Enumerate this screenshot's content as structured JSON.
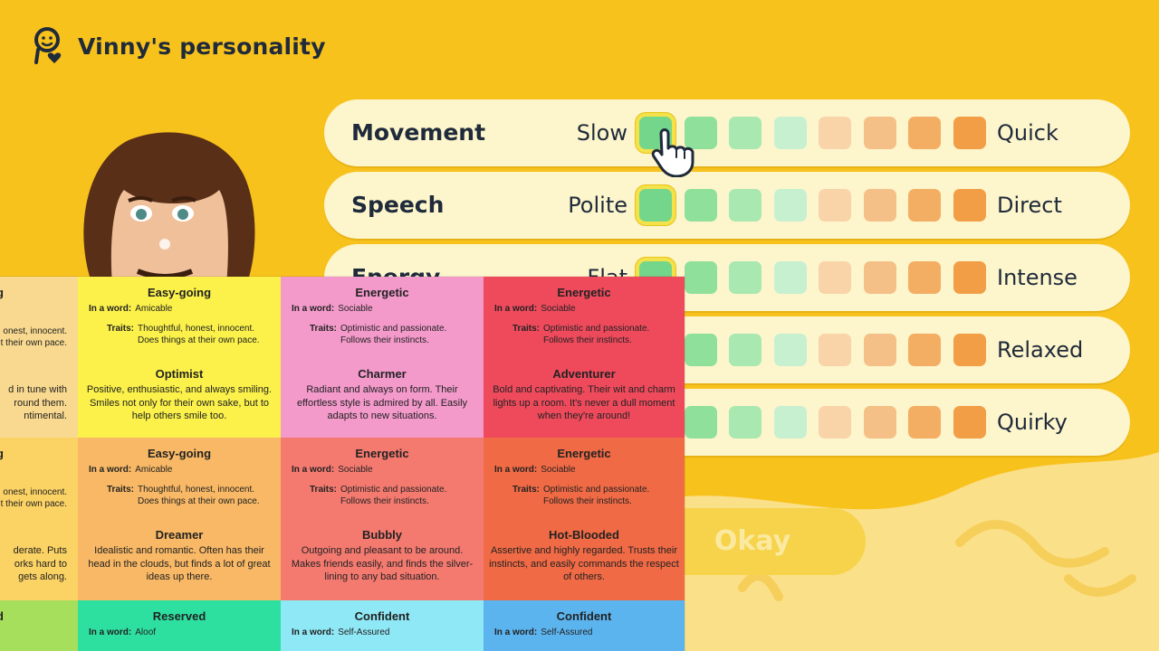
{
  "header": {
    "title": "Vinny's personality",
    "icon": "person-heart-icon"
  },
  "sliders": [
    {
      "name": "Movement",
      "left": "Slow",
      "right": "Quick",
      "selected": 0
    },
    {
      "name": "Speech",
      "left": "Polite",
      "right": "Direct",
      "selected": 0
    },
    {
      "name": "Energy",
      "left": "Flat",
      "right": "Intense",
      "selected": 0
    },
    {
      "name": "",
      "left": "",
      "right": "Relaxed",
      "selected": 0
    },
    {
      "name": "",
      "left": "",
      "right": "Quirky",
      "selected": 0
    }
  ],
  "slider_colors": [
    "#74d68a",
    "#8ee09b",
    "#a9e8b0",
    "#c6f0d0",
    "#f8d4a8",
    "#f5c087",
    "#f3ae64",
    "#f19e46"
  ],
  "okay_label": "Okay",
  "grid": {
    "word_label": "In a word:",
    "traits_label": "Traits:",
    "tiles": [
      {
        "color": "#f9d98f",
        "partial": true,
        "hd": "g",
        "lines": [
          "onest, innocent.",
          "t their own pace."
        ],
        "desc_lines": [
          "d in tune with",
          "round them.",
          "ntimental."
        ]
      },
      {
        "color": "#fbf14a",
        "hd": "Easy-going",
        "word": "Amicable",
        "traits": [
          "Thoughtful, honest, innocent.",
          "Does things at their own pace."
        ],
        "tp": "Optimist",
        "desc": "Positive, enthusiastic, and always smiling. Smiles not only for their own sake, but to help others smile too."
      },
      {
        "color": "#f39acb",
        "hd": "Energetic",
        "word": "Sociable",
        "traits": [
          "Optimistic and passionate.",
          "Follows their instincts."
        ],
        "tp": "Charmer",
        "desc": "Radiant and always on form. Their effortless style is admired by all. Easily adapts to new situations."
      },
      {
        "color": "#ee4a5c",
        "hd": "Energetic",
        "word": "Sociable",
        "traits": [
          "Optimistic and passionate.",
          "Follows their instincts."
        ],
        "tp": "Adventurer",
        "desc": "Bold and captivating. Their wit and charm lights up a room. It's never a dull moment when they're around!"
      },
      {
        "color": "#fbd264",
        "partial": true,
        "hd": "g",
        "lines": [
          "onest, innocent.",
          "t their own pace."
        ],
        "desc_lines": [
          "derate. Puts",
          "orks hard to",
          "gets along."
        ]
      },
      {
        "color": "#f8b865",
        "hd": "Easy-going",
        "word": "Amicable",
        "traits": [
          "Thoughtful, honest, innocent.",
          "Does things at their own pace."
        ],
        "tp": "Dreamer",
        "desc": "Idealistic and romantic. Often has their head in the clouds, but finds a lot of great ideas up there."
      },
      {
        "color": "#f47a70",
        "hd": "Energetic",
        "word": "Sociable",
        "traits": [
          "Optimistic and passionate.",
          "Follows their instincts."
        ],
        "tp": "Bubbly",
        "desc": "Outgoing and pleasant to be around. Makes friends easily, and finds the silver-lining to any bad situation."
      },
      {
        "color": "#f06a45",
        "hd": "Energetic",
        "word": "Sociable",
        "traits": [
          "Optimistic and passionate.",
          "Follows their instincts."
        ],
        "tp": "Hot-Blooded",
        "desc": "Assertive and highly regarded. Trusts their instincts, and easily commands the respect of others."
      },
      {
        "color": "#a6df5c",
        "partial": true,
        "hd": "d",
        "lines": [],
        "desc_lines": []
      },
      {
        "color": "#2ee0a0",
        "hd": "Reserved",
        "word": "Aloof",
        "traits": [],
        "tp": "",
        "desc": ""
      },
      {
        "color": "#8fe8f5",
        "hd": "Confident",
        "word": "Self-Assured",
        "traits": [],
        "tp": "",
        "desc": ""
      },
      {
        "color": "#5cb4ef",
        "hd": "Confident",
        "word": "Self-Assured",
        "traits": [],
        "tp": "",
        "desc": ""
      }
    ]
  }
}
